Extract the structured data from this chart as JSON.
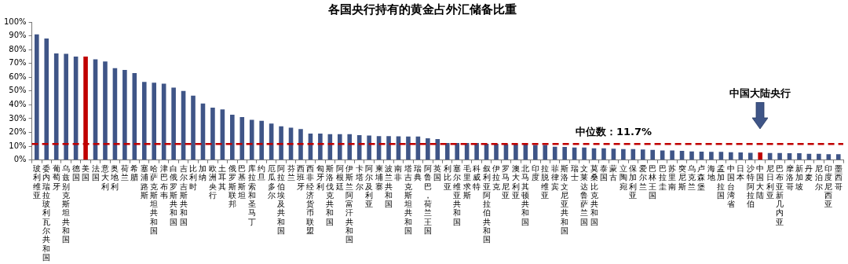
{
  "chart_data": {
    "type": "bar",
    "title": "各国央行持有的黄金占外汇储备比重",
    "categories": [
      "玻利维亚",
      "委内瑞拉玻利瓦尔共和国",
      "葡萄牙",
      "乌兹别克斯坦共和国",
      "德国",
      "美国",
      "法国",
      "意大利",
      "奥地利",
      "荷兰",
      "希腊",
      "塞浦路斯",
      "哈萨克斯坦共和国",
      "津巴布韦",
      "白俄罗斯共和国",
      "吉尔吉斯共和国",
      "比利时",
      "加纳",
      "欧洲央行",
      "土耳其",
      "俄罗斯联邦",
      "巴基斯坦",
      "库拉索和圣马丁",
      "约旦",
      "厄瓜多尔",
      "阿拉伯埃及共和国",
      "芬兰",
      "西班牙",
      "西非经济货币联盟",
      "匈牙利",
      "斯洛伐克共和国",
      "阿根廷",
      "伊斯兰阿富汗共和国",
      "卡塔尔",
      "阿尔及利亚",
      "柬埔寨",
      "波兰共和国",
      "南非",
      "塔吉克斯坦共和国",
      "瑞典",
      "阿鲁巴，荷兰王国",
      "英国",
      "利比亚",
      "塞尔维亚共和国",
      "毛里求斯",
      "科威特",
      "叙利亚阿拉伯共和国",
      "伊拉克",
      "罗马尼亚",
      "澳大利亚",
      "北马其顿共和国",
      "印度",
      "拉脱维亚",
      "菲律宾",
      "斯洛文尼亚共和国",
      "瑞士",
      "文莱达鲁萨兰国",
      "莫桑比克共和国",
      "泰国",
      "蒙古",
      "立陶宛",
      "保加利亚",
      "爱尔兰",
      "巴林王国",
      "巴拉圭",
      "苏里南",
      "突尼斯",
      "乌克兰",
      "卢森堡",
      "海地",
      "孟加拉国",
      "中国台湾省",
      "日本",
      "沙特阿拉伯",
      "中国大陆",
      "尼日利亚",
      "巴布亚新几内亚",
      "摩洛哥",
      "新加坡",
      "丹麦",
      "尼泊尔",
      "印度尼西亚",
      "墨西哥"
    ],
    "values": [
      91,
      88,
      77.2,
      77,
      75,
      75,
      73,
      71.4,
      66.5,
      65.3,
      63,
      56.6,
      56,
      55.3,
      52.5,
      50,
      46.7,
      41,
      38,
      36.7,
      32.8,
      31.2,
      29.2,
      28.4,
      26.5,
      24.5,
      23.5,
      22.5,
      19.2,
      19.2,
      18.8,
      18.8,
      18.8,
      18,
      17.8,
      17.4,
      17.4,
      17.2,
      17,
      17,
      15.8,
      15.2,
      12.4,
      12.4,
      12.4,
      12.4,
      11.8,
      11.8,
      11.5,
      11.4,
      11.4,
      10.9,
      10.9,
      9.7,
      9.5,
      9.1,
      9.1,
      8.5,
      8.5,
      8.2,
      7.9,
      7.9,
      7.7,
      7.3,
      6.9,
      6.9,
      6.7,
      6.3,
      6.1,
      5.9,
      5.9,
      5.7,
      5.5,
      5.3,
      5.5,
      5.1,
      5.1,
      4.9,
      4.9,
      4.5,
      4.5,
      4.3,
      4.3
    ],
    "colors": [
      "#3f5587",
      "#3f5587",
      "#3f5587",
      "#3f5587",
      "#3f5587",
      "#c00000",
      "#3f5587",
      "#3f5587",
      "#3f5587",
      "#3f5587",
      "#3f5587",
      "#3f5587",
      "#3f5587",
      "#3f5587",
      "#3f5587",
      "#3f5587",
      "#3f5587",
      "#3f5587",
      "#3f5587",
      "#3f5587",
      "#3f5587",
      "#3f5587",
      "#3f5587",
      "#3f5587",
      "#3f5587",
      "#3f5587",
      "#3f5587",
      "#3f5587",
      "#3f5587",
      "#3f5587",
      "#3f5587",
      "#3f5587",
      "#3f5587",
      "#3f5587",
      "#3f5587",
      "#3f5587",
      "#3f5587",
      "#3f5587",
      "#3f5587",
      "#3f5587",
      "#3f5587",
      "#3f5587",
      "#3f5587",
      "#3f5587",
      "#3f5587",
      "#3f5587",
      "#3f5587",
      "#3f5587",
      "#3f5587",
      "#3f5587",
      "#3f5587",
      "#3f5587",
      "#3f5587",
      "#3f5587",
      "#3f5587",
      "#3f5587",
      "#3f5587",
      "#3f5587",
      "#3f5587",
      "#3f5587",
      "#3f5587",
      "#3f5587",
      "#3f5587",
      "#3f5587",
      "#3f5587",
      "#3f5587",
      "#3f5587",
      "#3f5587",
      "#3f5587",
      "#3f5587",
      "#3f5587",
      "#3f5587",
      "#3f5587",
      "#3f5587",
      "#c00000",
      "#3f5587",
      "#3f5587",
      "#3f5587",
      "#3f5587",
      "#3f5587",
      "#3f5587",
      "#3f5587",
      "#3f5587"
    ],
    "ylim": [
      0,
      100
    ],
    "yticks": [
      {
        "value": 0,
        "label": "0%"
      },
      {
        "value": 10,
        "label": "10%"
      },
      {
        "value": 20,
        "label": "20%"
      },
      {
        "value": 30,
        "label": "30%"
      },
      {
        "value": 40,
        "label": "40%"
      },
      {
        "value": 50,
        "label": "50%"
      },
      {
        "value": 60,
        "label": "60%"
      },
      {
        "value": 70,
        "label": "70%"
      },
      {
        "value": 80,
        "label": "80%"
      },
      {
        "value": 90,
        "label": "90%"
      },
      {
        "value": 100,
        "label": "100%"
      }
    ],
    "grid": false,
    "legend": false,
    "ref_lines": [
      {
        "axis": "y",
        "value": 11.7,
        "label": "中位数：11.7%",
        "color": "#c00000",
        "line_style": "dashed"
      }
    ],
    "annotations": [
      "中国大陆央行"
    ]
  }
}
